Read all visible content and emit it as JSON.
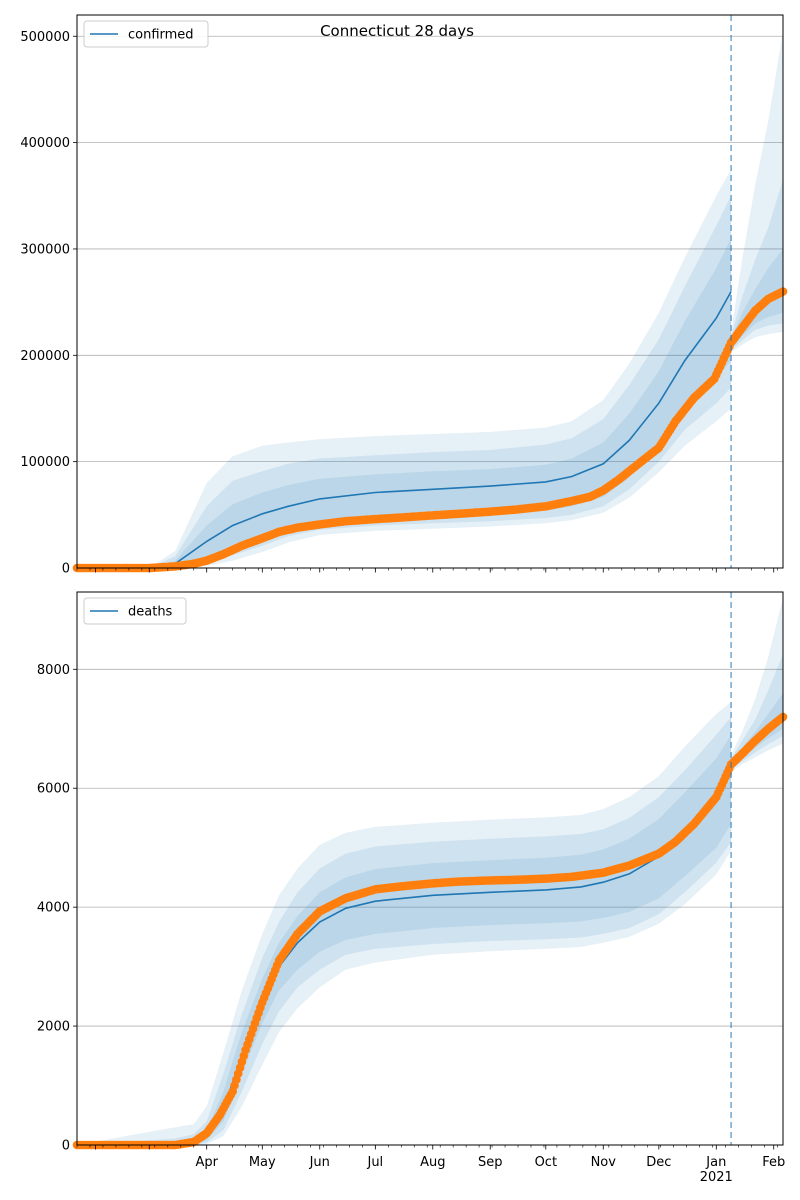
{
  "title": "Connecticut 28 days",
  "colors": {
    "model": "#1f77b4",
    "observed": "#ff7f0e",
    "band": "#1f77b4",
    "grid": "#b0b0b0",
    "forecast_line": "#1f77b4"
  },
  "forecast_start": "2021-01-09",
  "chart_data": [
    {
      "type": "line",
      "name": "confirmed-panel",
      "legend": "confirmed",
      "legend_position": "top-left",
      "grid": "horizontal",
      "xlim": [
        "2020-01-22",
        "2021-02-06"
      ],
      "ylim": [
        0,
        520000
      ],
      "yticks": [
        0,
        100000,
        200000,
        300000,
        400000,
        500000
      ],
      "ytick_labels": [
        "0",
        "100000",
        "200000",
        "300000",
        "400000",
        "500000"
      ],
      "model": {
        "x": [
          "2020-01-22",
          "2020-03-01",
          "2020-03-15",
          "2020-04-01",
          "2020-04-15",
          "2020-05-01",
          "2020-05-15",
          "2020-06-01",
          "2020-07-01",
          "2020-08-01",
          "2020-09-01",
          "2020-10-01",
          "2020-10-15",
          "2020-11-01",
          "2020-11-15",
          "2020-12-01",
          "2020-12-15",
          "2021-01-01",
          "2021-01-09"
        ],
        "y": [
          0,
          0,
          4000,
          25000,
          40000,
          51000,
          58000,
          65000,
          71000,
          74000,
          77000,
          81000,
          86000,
          98000,
          120000,
          155000,
          195000,
          235000,
          260000
        ],
        "bands": [
          {
            "lower": [
              0,
              0,
              1500,
              11000,
              20000,
              29000,
              37000,
              43000,
              47000,
              49000,
              51000,
              54000,
              58000,
              67000,
              85000,
              116000,
              150000,
              178000,
              195000
            ],
            "upper": [
              0,
              0,
              7000,
              40000,
              60000,
              71000,
              78000,
              84000,
              88000,
              91000,
              93000,
              97000,
              103000,
              118000,
              145000,
              185000,
              232000,
              282000,
              310000
            ]
          },
          {
            "lower": [
              0,
              0,
              600,
              5000,
              12000,
              21000,
              30000,
              36000,
              40000,
              42000,
              44000,
              47000,
              50000,
              58000,
              74000,
              100000,
              130000,
              155000,
              170000
            ],
            "upper": [
              0,
              0,
              11000,
              58000,
              82000,
              91000,
              98000,
              103000,
              106000,
              109000,
              111000,
              116000,
              122000,
              140000,
              172000,
              215000,
              265000,
              322000,
              350000
            ]
          },
          {
            "lower": [
              0,
              0,
              200,
              2000,
              7000,
              15000,
              24000,
              31000,
              35000,
              37000,
              39000,
              42000,
              45000,
              52000,
              66000,
              90000,
              115000,
              138000,
              150000
            ],
            "upper": [
              0,
              0,
              16000,
              80000,
              105000,
              115000,
              118000,
              121000,
              124000,
              126000,
              128000,
              132000,
              138000,
              158000,
              192000,
              240000,
              292000,
              350000,
              375000
            ]
          }
        ]
      },
      "forecast": {
        "x": [
          "2021-01-09",
          "2021-01-15",
          "2021-01-22",
          "2021-01-29",
          "2021-02-06"
        ],
        "y": [
          212000,
          226000,
          242000,
          253000,
          263000
        ],
        "bands": [
          {
            "lower": [
              207000,
              218000,
              230000,
              236000,
              240000
            ],
            "upper": [
              215000,
              240000,
              262000,
              282000,
              300000
            ]
          },
          {
            "lower": [
              205000,
              214000,
              224000,
              228000,
              230000
            ],
            "upper": [
              218000,
              255000,
              290000,
              320000,
              365000
            ]
          },
          {
            "lower": [
              203000,
              210000,
              217000,
              220000,
              222000
            ],
            "upper": [
              222000,
              290000,
              360000,
              420000,
              505000
            ]
          }
        ]
      },
      "observed": {
        "x": [
          "2020-01-22",
          "2020-03-01",
          "2020-03-15",
          "2020-03-25",
          "2020-04-01",
          "2020-04-10",
          "2020-04-20",
          "2020-05-01",
          "2020-05-10",
          "2020-05-20",
          "2020-06-01",
          "2020-06-15",
          "2020-07-01",
          "2020-07-15",
          "2020-08-01",
          "2020-08-15",
          "2020-09-01",
          "2020-09-15",
          "2020-10-01",
          "2020-10-15",
          "2020-10-25",
          "2020-11-01",
          "2020-11-10",
          "2020-11-20",
          "2020-12-01",
          "2020-12-10",
          "2020-12-20",
          "2020-12-31",
          "2021-01-09",
          "2021-01-15",
          "2021-01-22",
          "2021-01-29",
          "2021-02-06"
        ],
        "y": [
          0,
          0,
          1500,
          4000,
          7000,
          13000,
          21000,
          28000,
          34000,
          38000,
          41000,
          44000,
          46000,
          47500,
          49500,
          51000,
          53000,
          55000,
          58000,
          63000,
          67000,
          73000,
          84000,
          98000,
          113000,
          138000,
          160000,
          178000,
          212000,
          226000,
          242000,
          253000,
          260000
        ]
      }
    },
    {
      "type": "line",
      "name": "deaths-panel",
      "legend": "deaths",
      "legend_position": "top-left",
      "grid": "horizontal",
      "xlim": [
        "2020-01-22",
        "2021-02-06"
      ],
      "ylim": [
        0,
        9300
      ],
      "yticks": [
        0,
        2000,
        4000,
        6000,
        8000
      ],
      "ytick_labels": [
        "0",
        "2000",
        "4000",
        "6000",
        "8000"
      ],
      "xtick_labels": [
        "Apr",
        "May",
        "Jun",
        "Jul",
        "Aug",
        "Sep",
        "Oct",
        "Nov",
        "Dec",
        "Jan\n2021",
        "Feb"
      ],
      "model": {
        "x": [
          "2020-01-22",
          "2020-03-15",
          "2020-03-25",
          "2020-04-01",
          "2020-04-10",
          "2020-04-20",
          "2020-05-01",
          "2020-05-10",
          "2020-05-20",
          "2020-06-01",
          "2020-06-15",
          "2020-07-01",
          "2020-08-01",
          "2020-09-01",
          "2020-10-01",
          "2020-10-20",
          "2020-11-01",
          "2020-11-15",
          "2020-12-01",
          "2020-12-15",
          "2021-01-01",
          "2021-01-09"
        ],
        "y": [
          0,
          0,
          30,
          150,
          600,
          1500,
          2400,
          3000,
          3400,
          3750,
          3980,
          4100,
          4200,
          4250,
          4290,
          4340,
          4420,
          4560,
          4850,
          5280,
          5850,
          6250
        ],
        "bands": [
          {
            "lower": [
              0,
              0,
              10,
              80,
              400,
              1200,
              2050,
              2600,
              2950,
              3250,
              3450,
              3550,
              3650,
              3700,
              3730,
              3760,
              3820,
              3920,
              4150,
              4520,
              5000,
              5400
            ],
            "upper": [
              0,
              40,
              80,
              250,
              900,
              1900,
              2800,
              3400,
              3850,
              4250,
              4500,
              4640,
              4740,
              4790,
              4830,
              4880,
              4970,
              5150,
              5480,
              5930,
              6500,
              6900
            ]
          },
          {
            "lower": [
              0,
              0,
              5,
              40,
              250,
              900,
              1700,
              2250,
              2650,
              2950,
              3200,
              3300,
              3380,
              3430,
              3460,
              3490,
              3550,
              3650,
              3880,
              4250,
              4750,
              5100
            ],
            "upper": [
              0,
              110,
              180,
              400,
              1200,
              2200,
              3150,
              3750,
              4250,
              4650,
              4900,
              5020,
              5100,
              5150,
              5190,
              5230,
              5310,
              5500,
              5850,
              6300,
              6900,
              7200
            ]
          },
          {
            "lower": [
              0,
              0,
              0,
              15,
              150,
              650,
              1350,
              1900,
              2300,
              2650,
              2950,
              3070,
              3200,
              3260,
              3300,
              3330,
              3400,
              3500,
              3720,
              4050,
              4550,
              4950
            ],
            "upper": [
              0,
              300,
              350,
              650,
              1550,
              2600,
              3550,
              4200,
              4650,
              5050,
              5250,
              5350,
              5420,
              5470,
              5510,
              5550,
              5650,
              5850,
              6200,
              6700,
              7250,
              7450
            ]
          }
        ]
      },
      "forecast": {
        "x": [
          "2021-01-09",
          "2021-01-15",
          "2021-01-22",
          "2021-01-29",
          "2021-02-06"
        ],
        "y": [
          6400,
          6580,
          6800,
          7000,
          7200
        ],
        "bands": [
          {
            "lower": [
              6350,
              6500,
              6680,
              6840,
              7000
            ],
            "upper": [
              6450,
              6680,
              6950,
              7250,
              7600
            ]
          },
          {
            "lower": [
              6320,
              6450,
              6600,
              6740,
              6880
            ],
            "upper": [
              6500,
              6800,
              7150,
              7650,
              8250
            ]
          },
          {
            "lower": [
              6280,
              6400,
              6520,
              6640,
              6750
            ],
            "upper": [
              6560,
              6950,
              7500,
              8200,
              9200
            ]
          }
        ]
      },
      "observed": {
        "x": [
          "2020-01-22",
          "2020-03-15",
          "2020-03-25",
          "2020-04-01",
          "2020-04-08",
          "2020-04-15",
          "2020-04-22",
          "2020-05-01",
          "2020-05-10",
          "2020-05-20",
          "2020-06-01",
          "2020-06-15",
          "2020-07-01",
          "2020-07-15",
          "2020-08-01",
          "2020-08-15",
          "2020-09-01",
          "2020-09-15",
          "2020-10-01",
          "2020-10-15",
          "2020-11-01",
          "2020-11-15",
          "2020-12-01",
          "2020-12-10",
          "2020-12-20",
          "2021-01-01",
          "2021-01-09",
          "2021-01-15",
          "2021-01-22",
          "2021-01-29",
          "2021-02-06"
        ],
        "y": [
          0,
          0,
          50,
          200,
          500,
          900,
          1600,
          2400,
          3100,
          3550,
          3930,
          4150,
          4300,
          4350,
          4400,
          4430,
          4450,
          4460,
          4480,
          4510,
          4580,
          4700,
          4900,
          5100,
          5400,
          5850,
          6400,
          6580,
          6800,
          7000,
          7200
        ]
      }
    }
  ]
}
